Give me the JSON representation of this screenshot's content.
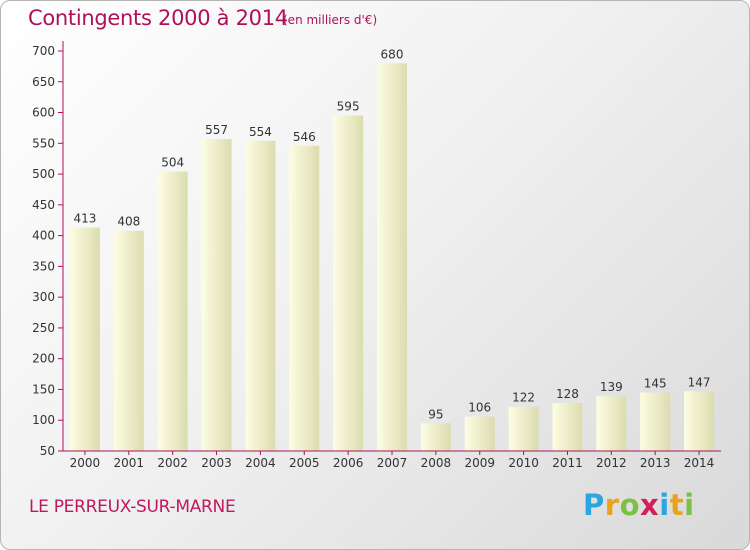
{
  "header": {
    "title": "Contingents 2000 à 2014",
    "subtitle": "(en milliers d'€)"
  },
  "footer": {
    "location": "LE PERREUX-SUR-MARNE",
    "logo_letters": [
      "P",
      "r",
      "o",
      "x",
      "i",
      "t",
      "i"
    ],
    "logo_colors": [
      "#2aa6e0",
      "#e8a21c",
      "#7cc242",
      "#d11f59",
      "#2aa6e0",
      "#e8a21c",
      "#7cc242"
    ]
  },
  "chart_data": {
    "type": "bar",
    "title": "Contingents 2000 à 2014",
    "subtitle": "(en milliers d'€)",
    "categories": [
      "2000",
      "2001",
      "2002",
      "2003",
      "2004",
      "2005",
      "2006",
      "2007",
      "2008",
      "2009",
      "2010",
      "2011",
      "2012",
      "2013",
      "2014"
    ],
    "values": [
      413,
      408,
      504,
      557,
      554,
      546,
      595,
      680,
      95,
      106,
      122,
      128,
      139,
      145,
      147
    ],
    "ylim": [
      50,
      700
    ],
    "yticks": [
      50,
      100,
      150,
      200,
      250,
      300,
      350,
      400,
      450,
      500,
      550,
      600,
      650,
      700
    ],
    "grid": false,
    "colors": {
      "axis": "#b0105b",
      "bar_light": "#fdfde3",
      "bar_dark": "#dcdcb0"
    }
  }
}
